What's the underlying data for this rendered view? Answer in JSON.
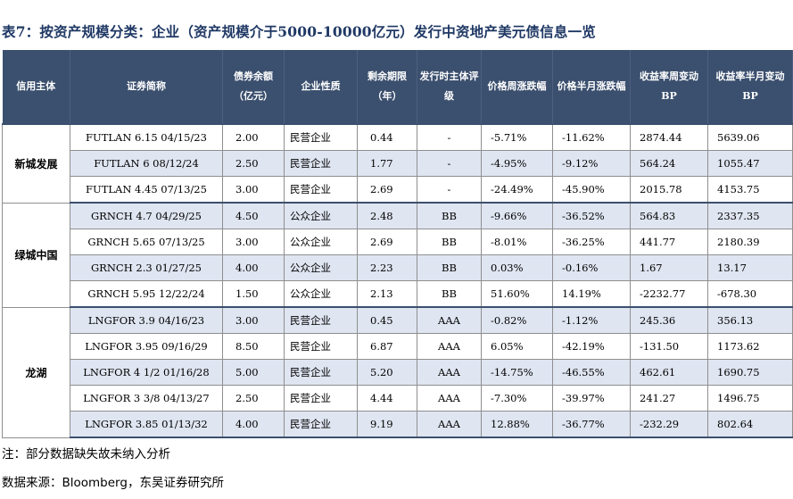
{
  "title": "表7：按资产规模分类：企业（资产规模介于5000-10000亿元）发行中资地产美元债信息一览",
  "headers": [
    "信用主体",
    "证券简称",
    "债券余额（亿元）",
    "企业性质",
    "剩余期限（年）",
    "发行时主体评级",
    "价格周涨跌幅",
    "价格半月涨跌幅",
    "收益率周变动BP",
    "收益率半月变动BP"
  ],
  "groups": [
    {
      "issuer": "新城发展",
      "rows": [
        {
          "name": "FUTLAN 6.15 04/15/23",
          "balance": "2.00",
          "nature": "民营企业",
          "term": "0.44",
          "rating": "-",
          "pw": "-5.71%",
          "phm": "-11.62%",
          "yw": "2874.44",
          "yhm": "5639.06"
        },
        {
          "name": "FUTLAN 6 08/12/24",
          "balance": "2.50",
          "nature": "民营企业",
          "term": "1.77",
          "rating": "-",
          "pw": "-4.95%",
          "phm": "-9.12%",
          "yw": "564.24",
          "yhm": "1055.47"
        },
        {
          "name": "FUTLAN 4.45 07/13/25",
          "balance": "3.00",
          "nature": "民营企业",
          "term": "2.69",
          "rating": "-",
          "pw": "-24.49%",
          "phm": "-45.90%",
          "yw": "2015.78",
          "yhm": "4153.75"
        }
      ]
    },
    {
      "issuer": "绿城中国",
      "rows": [
        {
          "name": "GRNCH 4.7 04/29/25",
          "balance": "4.50",
          "nature": "公众企业",
          "term": "2.48",
          "rating": "BB",
          "pw": "-9.66%",
          "phm": "-36.52%",
          "yw": "564.83",
          "yhm": "2337.35"
        },
        {
          "name": "GRNCH 5.65 07/13/25",
          "balance": "3.00",
          "nature": "公众企业",
          "term": "2.69",
          "rating": "BB",
          "pw": "-8.01%",
          "phm": "-36.25%",
          "yw": "441.77",
          "yhm": "2180.39"
        },
        {
          "name": "GRNCH 2.3 01/27/25",
          "balance": "4.00",
          "nature": "公众企业",
          "term": "2.23",
          "rating": "BB",
          "pw": "0.03%",
          "phm": "-0.16%",
          "yw": "1.67",
          "yhm": "13.17"
        },
        {
          "name": "GRNCH 5.95 12/22/24",
          "balance": "1.50",
          "nature": "公众企业",
          "term": "2.13",
          "rating": "BB",
          "pw": "51.60%",
          "phm": "14.19%",
          "yw": "-2232.77",
          "yhm": "-678.30"
        }
      ]
    },
    {
      "issuer": "龙湖",
      "rows": [
        {
          "name": "LNGFOR 3.9 04/16/23",
          "balance": "3.00",
          "nature": "民营企业",
          "term": "0.45",
          "rating": "AAA",
          "pw": "-0.82%",
          "phm": "-1.12%",
          "yw": "245.36",
          "yhm": "356.13"
        },
        {
          "name": "LNGFOR 3.95 09/16/29",
          "balance": "8.50",
          "nature": "民营企业",
          "term": "6.87",
          "rating": "AAA",
          "pw": "6.05%",
          "phm": "-42.19%",
          "yw": "-131.50",
          "yhm": "1173.62"
        },
        {
          "name": "LNGFOR 4 1/2 01/16/28",
          "balance": "5.00",
          "nature": "民营企业",
          "term": "5.20",
          "rating": "AAA",
          "pw": "-14.75%",
          "phm": "-46.55%",
          "yw": "462.61",
          "yhm": "1690.75"
        },
        {
          "name": "LNGFOR 3 3/8 04/13/27",
          "balance": "2.50",
          "nature": "民营企业",
          "term": "4.44",
          "rating": "AAA",
          "pw": "-7.30%",
          "phm": "-39.97%",
          "yw": "241.27",
          "yhm": "1496.75"
        },
        {
          "name": "LNGFOR 3.85 01/13/32",
          "balance": "4.00",
          "nature": "民营企业",
          "term": "9.19",
          "rating": "AAA",
          "pw": "12.88%",
          "phm": "-36.77%",
          "yw": "-232.29",
          "yhm": "802.64"
        }
      ]
    }
  ],
  "note": "注：部分数据缺失故未纳入分析",
  "source_label": "数据来源：",
  "source_text": "Bloomberg，东吴证券研究所"
}
